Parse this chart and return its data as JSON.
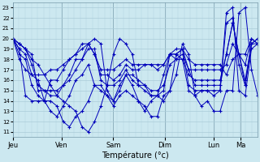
{
  "title": "",
  "xlabel": "Température (°c)",
  "ylabel": "",
  "background_color": "#cce8f0",
  "grid_color": "#aaccd8",
  "line_color": "#0000bb",
  "marker_color": "#0000bb",
  "ylim": [
    10.5,
    23.5
  ],
  "yticks": [
    11,
    12,
    13,
    14,
    15,
    16,
    17,
    18,
    19,
    20,
    21,
    22,
    23
  ],
  "day_labels": [
    "Jeu",
    "Ven",
    "Sam",
    "Dim",
    "Lun",
    "Ma"
  ],
  "num_points": 40,
  "day_x_fractions": [
    0.0,
    0.2,
    0.41,
    0.62,
    0.82,
    0.93
  ],
  "lines": [
    [
      20.0,
      19.5,
      19.0,
      18.0,
      17.5,
      16.5,
      15.5,
      14.5,
      14.0,
      13.5,
      13.0,
      11.5,
      11.0,
      12.0,
      13.5,
      15.5,
      18.5,
      20.0,
      19.5,
      18.5,
      15.5,
      15.0,
      14.5,
      14.5,
      14.0,
      15.0,
      16.5,
      19.5,
      18.5,
      14.5,
      13.5,
      14.0,
      13.0,
      13.0,
      15.0,
      15.0,
      22.5,
      23.0,
      17.0,
      14.5
    ],
    [
      20.0,
      19.5,
      19.0,
      17.5,
      15.5,
      15.0,
      14.5,
      14.5,
      15.5,
      16.5,
      18.0,
      18.0,
      19.5,
      20.0,
      19.5,
      15.0,
      14.0,
      15.0,
      16.5,
      15.5,
      14.0,
      13.0,
      14.0,
      14.5,
      15.0,
      18.5,
      18.5,
      19.0,
      15.5,
      15.0,
      15.0,
      15.0,
      15.0,
      15.0,
      21.5,
      22.0,
      17.5,
      15.5,
      19.5,
      19.5
    ],
    [
      20.0,
      19.0,
      18.5,
      16.5,
      16.0,
      14.0,
      13.0,
      12.5,
      13.5,
      14.5,
      16.0,
      16.5,
      17.5,
      15.5,
      15.0,
      14.5,
      14.0,
      15.5,
      16.5,
      16.5,
      16.0,
      15.5,
      15.0,
      15.0,
      15.5,
      17.5,
      18.0,
      18.5,
      17.0,
      15.5,
      15.5,
      15.5,
      15.5,
      15.5,
      18.5,
      21.5,
      18.5,
      15.5,
      19.5,
      20.0
    ],
    [
      20.0,
      18.5,
      18.0,
      15.5,
      14.5,
      14.0,
      16.0,
      16.0,
      17.0,
      18.0,
      18.5,
      19.0,
      19.5,
      18.5,
      16.5,
      16.5,
      16.0,
      16.5,
      17.5,
      17.0,
      17.0,
      17.5,
      17.5,
      17.0,
      17.5,
      18.5,
      18.5,
      19.0,
      17.0,
      17.0,
      17.0,
      17.0,
      17.0,
      17.0,
      17.5,
      19.5,
      18.5,
      17.5,
      20.0,
      19.5
    ],
    [
      20.0,
      18.0,
      17.0,
      16.5,
      16.5,
      16.5,
      17.0,
      17.0,
      17.5,
      18.0,
      18.5,
      19.5,
      19.5,
      18.5,
      17.0,
      17.0,
      17.0,
      17.5,
      18.0,
      17.5,
      17.5,
      17.5,
      17.5,
      17.5,
      17.5,
      18.5,
      19.0,
      19.0,
      18.0,
      17.5,
      17.5,
      17.5,
      17.5,
      17.5,
      16.5,
      18.0,
      18.5,
      18.5,
      20.0,
      19.5
    ],
    [
      20.0,
      19.5,
      19.0,
      18.5,
      15.0,
      15.0,
      15.0,
      15.0,
      15.5,
      16.0,
      17.0,
      18.0,
      19.0,
      19.0,
      16.0,
      15.5,
      15.5,
      16.0,
      17.0,
      16.0,
      15.5,
      15.5,
      14.5,
      14.5,
      16.5,
      18.5,
      18.0,
      18.0,
      16.5,
      16.0,
      16.0,
      16.0,
      16.0,
      16.0,
      18.5,
      21.5,
      18.5,
      16.0,
      19.5,
      20.0
    ],
    [
      20.0,
      19.0,
      14.5,
      14.0,
      14.0,
      14.0,
      14.0,
      13.5,
      12.0,
      11.5,
      12.5,
      13.0,
      14.0,
      15.5,
      15.5,
      14.5,
      13.5,
      14.5,
      15.0,
      14.5,
      14.0,
      13.5,
      12.5,
      12.5,
      14.5,
      15.0,
      18.5,
      18.0,
      15.0,
      14.5,
      15.0,
      15.0,
      14.5,
      15.0,
      22.5,
      23.0,
      15.0,
      14.5,
      19.0,
      19.5
    ]
  ]
}
